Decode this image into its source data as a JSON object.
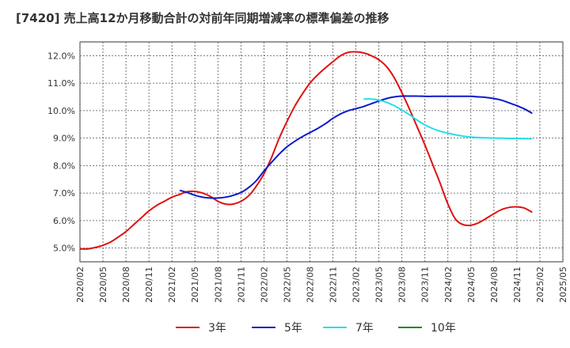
{
  "chart_data": {
    "type": "line",
    "title": "[7420]  売上高12か月移動合計の対前年同期増減率の標準偏差の推移",
    "xlabel": "",
    "ylabel": "",
    "ylim": [
      4.5,
      12.5
    ],
    "yticks": [
      "5.0%",
      "6.0%",
      "7.0%",
      "8.0%",
      "9.0%",
      "10.0%",
      "11.0%",
      "12.0%"
    ],
    "xticks": [
      "2020/02",
      "2020/05",
      "2020/08",
      "2020/11",
      "2021/02",
      "2021/05",
      "2021/08",
      "2021/11",
      "2022/02",
      "2022/05",
      "2022/08",
      "2022/11",
      "2023/02",
      "2023/05",
      "2023/08",
      "2023/11",
      "2024/02",
      "2024/05",
      "2024/08",
      "2024/11",
      "2025/02",
      "2025/05"
    ],
    "grid": true,
    "legend_position": "bottom",
    "series": [
      {
        "name": "3年",
        "color": "#e01010",
        "points": [
          [
            "2020/02",
            4.97
          ],
          [
            "2020/03",
            4.97
          ],
          [
            "2020/04",
            5.02
          ],
          [
            "2020/05",
            5.1
          ],
          [
            "2020/06",
            5.22
          ],
          [
            "2020/07",
            5.4
          ],
          [
            "2020/08",
            5.6
          ],
          [
            "2020/09",
            5.85
          ],
          [
            "2020/10",
            6.1
          ],
          [
            "2020/11",
            6.35
          ],
          [
            "2020/12",
            6.55
          ],
          [
            "2021/01",
            6.7
          ],
          [
            "2021/02",
            6.85
          ],
          [
            "2021/03",
            6.95
          ],
          [
            "2021/04",
            7.05
          ],
          [
            "2021/05",
            7.06
          ],
          [
            "2021/06",
            7.0
          ],
          [
            "2021/07",
            6.88
          ],
          [
            "2021/08",
            6.7
          ],
          [
            "2021/09",
            6.6
          ],
          [
            "2021/10",
            6.6
          ],
          [
            "2021/11",
            6.7
          ],
          [
            "2021/12",
            6.9
          ],
          [
            "2022/01",
            7.25
          ],
          [
            "2022/02",
            7.7
          ],
          [
            "2022/03",
            8.3
          ],
          [
            "2022/04",
            9.0
          ],
          [
            "2022/05",
            9.6
          ],
          [
            "2022/06",
            10.15
          ],
          [
            "2022/07",
            10.6
          ],
          [
            "2022/08",
            11.0
          ],
          [
            "2022/09",
            11.3
          ],
          [
            "2022/10",
            11.55
          ],
          [
            "2022/11",
            11.78
          ],
          [
            "2022/12",
            12.0
          ],
          [
            "2023/01",
            12.12
          ],
          [
            "2023/02",
            12.14
          ],
          [
            "2023/03",
            12.1
          ],
          [
            "2023/04",
            12.0
          ],
          [
            "2023/05",
            11.85
          ],
          [
            "2023/06",
            11.6
          ],
          [
            "2023/07",
            11.2
          ],
          [
            "2023/08",
            10.65
          ],
          [
            "2023/09",
            10.05
          ],
          [
            "2023/10",
            9.4
          ],
          [
            "2023/11",
            8.75
          ],
          [
            "2023/12",
            8.05
          ],
          [
            "2024/01",
            7.35
          ],
          [
            "2024/02",
            6.6
          ],
          [
            "2024/03",
            6.05
          ],
          [
            "2024/04",
            5.85
          ],
          [
            "2024/05",
            5.83
          ],
          [
            "2024/06",
            5.92
          ],
          [
            "2024/07",
            6.08
          ],
          [
            "2024/08",
            6.25
          ],
          [
            "2024/09",
            6.4
          ],
          [
            "2024/10",
            6.48
          ],
          [
            "2024/11",
            6.5
          ],
          [
            "2024/12",
            6.45
          ],
          [
            "2025/01",
            6.3
          ]
        ]
      },
      {
        "name": "5年",
        "color": "#0a1acc",
        "points": [
          [
            "2021/03",
            7.1
          ],
          [
            "2021/04",
            7.02
          ],
          [
            "2021/05",
            6.92
          ],
          [
            "2021/06",
            6.85
          ],
          [
            "2021/07",
            6.82
          ],
          [
            "2021/08",
            6.82
          ],
          [
            "2021/09",
            6.85
          ],
          [
            "2021/10",
            6.92
          ],
          [
            "2021/11",
            7.02
          ],
          [
            "2021/12",
            7.2
          ],
          [
            "2022/01",
            7.45
          ],
          [
            "2022/02",
            7.8
          ],
          [
            "2022/03",
            8.12
          ],
          [
            "2022/04",
            8.42
          ],
          [
            "2022/05",
            8.68
          ],
          [
            "2022/06",
            8.88
          ],
          [
            "2022/07",
            9.05
          ],
          [
            "2022/08",
            9.2
          ],
          [
            "2022/09",
            9.35
          ],
          [
            "2022/10",
            9.52
          ],
          [
            "2022/11",
            9.72
          ],
          [
            "2022/12",
            9.88
          ],
          [
            "2023/01",
            10.0
          ],
          [
            "2023/02",
            10.07
          ],
          [
            "2023/03",
            10.15
          ],
          [
            "2023/04",
            10.25
          ],
          [
            "2023/05",
            10.35
          ],
          [
            "2023/06",
            10.44
          ],
          [
            "2023/07",
            10.5
          ],
          [
            "2023/08",
            10.53
          ],
          [
            "2023/09",
            10.53
          ],
          [
            "2023/10",
            10.53
          ],
          [
            "2023/11",
            10.52
          ],
          [
            "2023/12",
            10.52
          ],
          [
            "2024/01",
            10.52
          ],
          [
            "2024/02",
            10.52
          ],
          [
            "2024/03",
            10.52
          ],
          [
            "2024/04",
            10.52
          ],
          [
            "2024/05",
            10.52
          ],
          [
            "2024/06",
            10.5
          ],
          [
            "2024/07",
            10.48
          ],
          [
            "2024/08",
            10.44
          ],
          [
            "2024/09",
            10.38
          ],
          [
            "2024/10",
            10.28
          ],
          [
            "2024/11",
            10.18
          ],
          [
            "2024/12",
            10.06
          ],
          [
            "2025/01",
            9.9
          ]
        ]
      },
      {
        "name": "7年",
        "color": "#22e0e8",
        "points": [
          [
            "2023/03",
            10.42
          ],
          [
            "2023/04",
            10.42
          ],
          [
            "2023/05",
            10.38
          ],
          [
            "2023/06",
            10.3
          ],
          [
            "2023/07",
            10.18
          ],
          [
            "2023/08",
            10.02
          ],
          [
            "2023/09",
            9.85
          ],
          [
            "2023/10",
            9.65
          ],
          [
            "2023/11",
            9.48
          ],
          [
            "2023/12",
            9.35
          ],
          [
            "2024/01",
            9.25
          ],
          [
            "2024/02",
            9.18
          ],
          [
            "2024/03",
            9.12
          ],
          [
            "2024/04",
            9.07
          ],
          [
            "2024/05",
            9.04
          ],
          [
            "2024/06",
            9.02
          ],
          [
            "2024/07",
            9.01
          ],
          [
            "2024/08",
            9.0
          ],
          [
            "2024/09",
            9.0
          ],
          [
            "2024/10",
            8.99
          ],
          [
            "2024/11",
            8.99
          ],
          [
            "2024/12",
            8.98
          ],
          [
            "2025/01",
            8.98
          ]
        ]
      },
      {
        "name": "10年",
        "color": "#1a8a1a",
        "points": []
      }
    ]
  }
}
